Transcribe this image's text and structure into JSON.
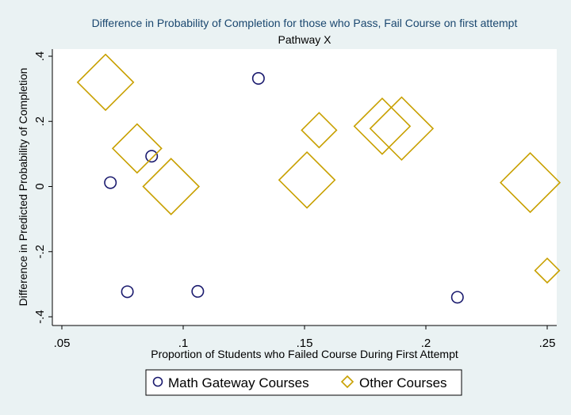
{
  "chart_data": {
    "type": "scatter",
    "title": "Difference in Probability of Completion for those who Pass, Fail Course on first attempt",
    "subtitle": "Pathway X",
    "xlabel": "Proportion of Students who Failed Course During First Attempt",
    "ylabel": "Difference in Predicted Probability of Completion",
    "xlim": [
      0.05,
      0.25
    ],
    "ylim": [
      -0.4,
      0.4
    ],
    "x_ticks": [
      ".05",
      ".1",
      ".15",
      ".2",
      ".25"
    ],
    "y_ticks": [
      "-.4",
      "-.2",
      "0",
      ".2",
      ".4"
    ],
    "grid": false,
    "legend_position": "bottom",
    "series": [
      {
        "name": "Math Gateway Courses",
        "marker": "hollow-circle",
        "color": "#1a1a6e",
        "points": [
          {
            "x": 0.07,
            "y": 0.012,
            "size": 1
          },
          {
            "x": 0.077,
            "y": -0.323,
            "size": 1
          },
          {
            "x": 0.087,
            "y": 0.093,
            "size": 1
          },
          {
            "x": 0.106,
            "y": -0.322,
            "size": 1
          },
          {
            "x": 0.131,
            "y": 0.332,
            "size": 1
          },
          {
            "x": 0.213,
            "y": -0.34,
            "size": 1
          }
        ]
      },
      {
        "name": "Other Courses",
        "marker": "hollow-diamond",
        "color": "#c8a000",
        "points": [
          {
            "x": 0.068,
            "y": 0.32,
            "size": 1.6
          },
          {
            "x": 0.081,
            "y": 0.117,
            "size": 1.4
          },
          {
            "x": 0.095,
            "y": 0.0,
            "size": 1.6
          },
          {
            "x": 0.151,
            "y": 0.02,
            "size": 1.6
          },
          {
            "x": 0.156,
            "y": 0.173,
            "size": 1.0
          },
          {
            "x": 0.182,
            "y": 0.185,
            "size": 1.6
          },
          {
            "x": 0.19,
            "y": 0.178,
            "size": 1.8
          },
          {
            "x": 0.243,
            "y": 0.012,
            "size": 1.7
          },
          {
            "x": 0.25,
            "y": -0.258,
            "size": 0.7
          }
        ]
      }
    ]
  }
}
